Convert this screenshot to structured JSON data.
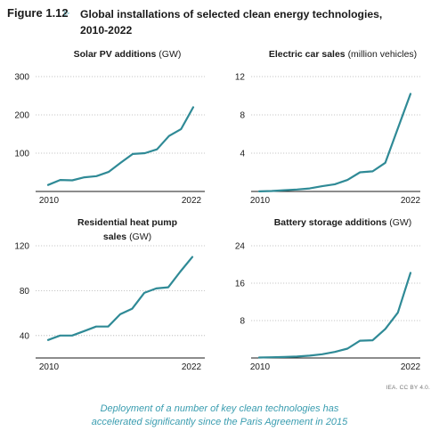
{
  "figure": {
    "label": "Figure 1.12",
    "title_line1": "Global installations of selected clean energy technologies,",
    "title_line2": "2010-2022"
  },
  "chart_data": [
    {
      "type": "line",
      "title_main": "Solar PV additions",
      "title_unit": "(GW)",
      "x": [
        2010,
        2011,
        2012,
        2013,
        2014,
        2015,
        2016,
        2017,
        2018,
        2019,
        2020,
        2021,
        2022
      ],
      "y": [
        17,
        30,
        29,
        37,
        40,
        51,
        75,
        98,
        100,
        110,
        145,
        163,
        220
      ],
      "ylim": [
        0,
        300
      ],
      "yticks": [
        100,
        200,
        300
      ],
      "xticks": [
        2010,
        2022
      ],
      "grid": true,
      "color": "#2f8a96"
    },
    {
      "type": "line",
      "title_main": "Electric car sales",
      "title_unit": "(million vehicles)",
      "x": [
        2010,
        2011,
        2012,
        2013,
        2014,
        2015,
        2016,
        2017,
        2018,
        2019,
        2020,
        2021,
        2022
      ],
      "y": [
        0.01,
        0.05,
        0.13,
        0.2,
        0.32,
        0.55,
        0.75,
        1.2,
        2.0,
        2.1,
        3.0,
        6.6,
        10.2
      ],
      "ylim": [
        0,
        12
      ],
      "yticks": [
        4,
        8,
        12
      ],
      "xticks": [
        2010,
        2022
      ],
      "grid": true,
      "color": "#2f8a96"
    },
    {
      "type": "line",
      "title_main": "Residential heat pump",
      "title_main2": "sales",
      "title_unit": "(GW)",
      "x": [
        2010,
        2011,
        2012,
        2013,
        2014,
        2015,
        2016,
        2017,
        2018,
        2019,
        2020,
        2021,
        2022
      ],
      "y": [
        36,
        40,
        40,
        44,
        48,
        48,
        59,
        64,
        78,
        82,
        83,
        97,
        110
      ],
      "ylim": [
        20,
        120
      ],
      "yticks": [
        40,
        80,
        120
      ],
      "xticks": [
        2010,
        2022
      ],
      "grid": true,
      "color": "#2f8a96"
    },
    {
      "type": "line",
      "title_main": "Battery storage additions",
      "title_unit": "(GW)",
      "x": [
        2010,
        2011,
        2012,
        2013,
        2014,
        2015,
        2016,
        2017,
        2018,
        2019,
        2020,
        2021,
        2022
      ],
      "y": [
        0.1,
        0.15,
        0.2,
        0.3,
        0.5,
        0.8,
        1.3,
        2.0,
        3.7,
        3.8,
        6.2,
        9.7,
        18.2
      ],
      "ylim": [
        0,
        24
      ],
      "yticks": [
        8,
        16,
        24
      ],
      "xticks": [
        2010,
        2022
      ],
      "grid": true,
      "color": "#2f8a96"
    }
  ],
  "credit": "IEA. CC BY 4.0.",
  "caption": {
    "line1": "Deployment of a number of key clean technologies has",
    "line2": "accelerated significantly since the Paris Agreement in 2015"
  }
}
